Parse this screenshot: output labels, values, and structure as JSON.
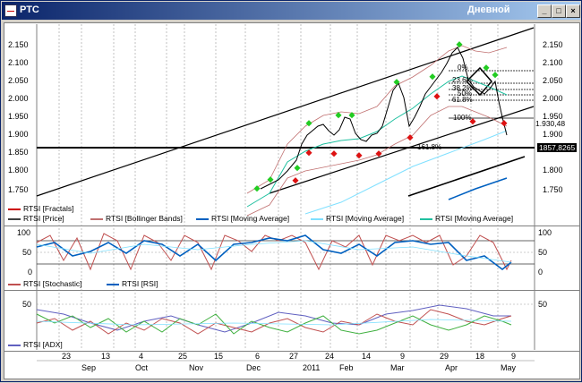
{
  "window": {
    "title": "РТС",
    "timeframe": "Дневной"
  },
  "title_buttons": [
    "_",
    "□",
    "×"
  ],
  "price_axis": [
    "2.150",
    "2.100",
    "2.050",
    "2.000",
    "1.950",
    "1.900",
    "1.850",
    "1.800",
    "1.750"
  ],
  "right_axis": [
    "2.150",
    "2.100",
    "2.050",
    "2.000",
    "1.950",
    "1.900",
    "1.850",
    "1.800",
    "1.750"
  ],
  "last_price_label": "1857,8265",
  "fib_labels": {
    "l0": "0%",
    "l23": "23.6%",
    "l38": "38.2%",
    "l50": "50%",
    "l61": "61.8%",
    "l100": "100%",
    "l161": "161.8%",
    "price_tag": "1.930,48"
  },
  "legend_main": [
    {
      "label": "RTSI [Fractals]",
      "color": "#cc0000"
    },
    {
      "label": "RTSI [Price]",
      "color": "#404040"
    },
    {
      "label": "RTSI [Bollinger Bands]",
      "color": "#c07070"
    },
    {
      "label": "RTSI [Moving Average]",
      "color": "#0060c0"
    },
    {
      "label": "RTSI [Moving Average]",
      "color": "#80e0ff"
    },
    {
      "label": "RTSI [Moving Average]",
      "color": "#20c0a0"
    }
  ],
  "osc_axis": [
    "100",
    "50",
    "0"
  ],
  "legend_osc": [
    {
      "label": "RTSI [Stochastic]",
      "color": "#c05050"
    },
    {
      "label": "RTSI [RSI]",
      "color": "#0060c0"
    }
  ],
  "adx_axis": [
    "50"
  ],
  "legend_adx": [
    {
      "label": "RTSI [ADX]",
      "color": "#6060c0"
    }
  ],
  "date_days": [
    "23",
    "13",
    "4",
    "25",
    "15",
    "6",
    "27",
    "24",
    "14",
    "9",
    "29",
    "18",
    "9"
  ],
  "date_months": [
    "Sep",
    "Oct",
    "Nov",
    "Dec",
    "2011",
    "Feb",
    "Mar",
    "Apr",
    "May"
  ],
  "colors": {
    "support": "#000000",
    "fractal_up": "#22cc22",
    "fractal_down": "#dd1111"
  }
}
